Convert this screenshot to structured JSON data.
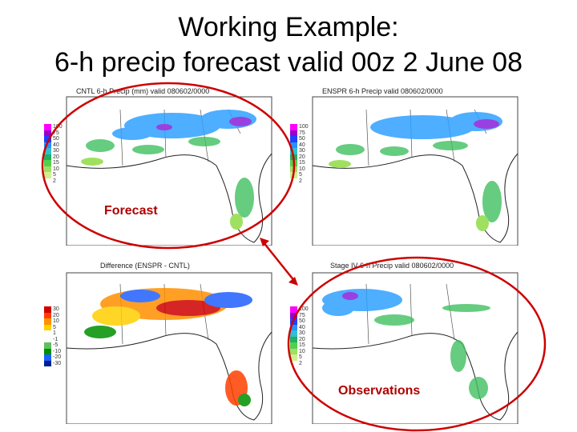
{
  "slide": {
    "title_line1": "Working Example:",
    "title_line2": "6-h precip forecast valid 00z 2 June 08"
  },
  "panels": [
    {
      "caption": "CNTL 6-h Precip (mm) valid 080602/0000",
      "scale": [
        "100",
        "75",
        "50",
        "40",
        "30",
        "20",
        "15",
        "10",
        "5",
        "2"
      ]
    },
    {
      "caption": "ENSPR 6-h Precip valid 080602/0000",
      "scale": [
        "100",
        "75",
        "50",
        "40",
        "30",
        "20",
        "15",
        "10",
        "5",
        "2"
      ]
    },
    {
      "caption": "Difference (ENSPR - CNTL)",
      "scale": [
        "30",
        "20",
        "10",
        "5",
        "1",
        "-1",
        "-5",
        "-10",
        "-20",
        "-30"
      ]
    },
    {
      "caption": "Stage IV 6-h Precip valid 080602/0000",
      "scale": [
        "100",
        "75",
        "50",
        "40",
        "30",
        "20",
        "15",
        "10",
        "5",
        "2"
      ]
    }
  ],
  "annotations": {
    "forecast_label": "Forecast",
    "observations_label": "Observations"
  },
  "colors": {
    "annotation": "#cc0000",
    "precip_scale": [
      "#ff00ff",
      "#9900cc",
      "#2040ff",
      "#2a90ff",
      "#30c0d0",
      "#20b060",
      "#50d050",
      "#a0e060",
      "#d0f090",
      "#ffffff"
    ],
    "diff_scale": [
      "#d00000",
      "#ff4000",
      "#ff9000",
      "#ffd000",
      "#ffffff",
      "#ffffff",
      "#60c060",
      "#009000",
      "#2060ff",
      "#002090"
    ]
  }
}
